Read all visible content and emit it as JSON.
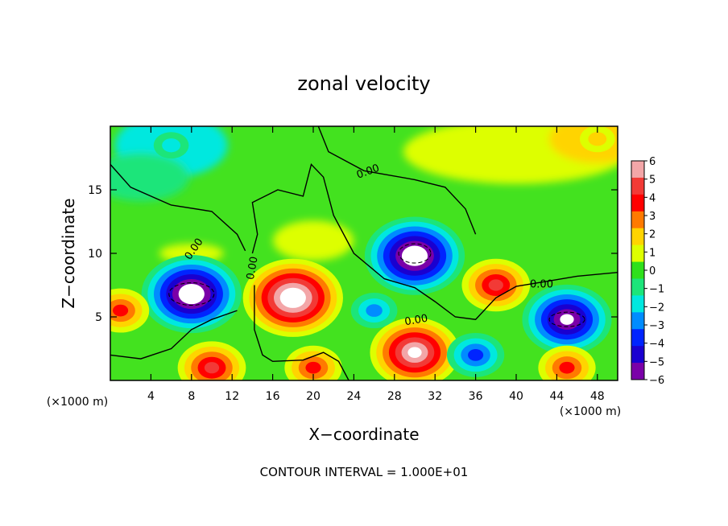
{
  "chart_data": {
    "type": "heatmap",
    "title": "zonal velocity",
    "xlabel": "X−coordinate",
    "ylabel": "Z−coordinate",
    "x_unit_label": "(×1000 m)",
    "z_unit_label": "(×1000 m)",
    "footer": "CONTOUR INTERVAL = 1.000E+01",
    "xlim": [
      0,
      50
    ],
    "ylim": [
      0,
      20
    ],
    "x_ticks": [
      "4",
      "8",
      "12",
      "16",
      "20",
      "24",
      "28",
      "32",
      "36",
      "40",
      "44",
      "48"
    ],
    "y_ticks": [
      "5",
      "10",
      "15"
    ],
    "colorbar": {
      "ticks": [
        "6",
        "5",
        "4",
        "3",
        "2",
        "1",
        "0",
        "−1",
        "−2",
        "−3",
        "−4",
        "−5",
        "−6"
      ],
      "colors": [
        "#f3a6a8",
        "#f23a36",
        "#ff0000",
        "#ff7a00",
        "#ffd400",
        "#ddff00",
        "#2fe01b",
        "#1ce57a",
        "#00e8df",
        "#008cff",
        "#0024ff",
        "#1a00d0",
        "#7a00a8"
      ]
    },
    "contour_labels": [
      "0.00",
      "0.00",
      "0.00",
      "0.00",
      "0.00"
    ],
    "features": [
      {
        "x": 8,
        "z": 6.8,
        "value": -8
      },
      {
        "x": 18,
        "z": 6.5,
        "value": 8
      },
      {
        "x": 30,
        "z": 9.8,
        "value": -8
      },
      {
        "x": 30,
        "z": 2.2,
        "value": 7
      },
      {
        "x": 38,
        "z": 7.5,
        "value": 5
      },
      {
        "x": 45,
        "z": 4.8,
        "value": -7
      },
      {
        "x": 1,
        "z": 5.5,
        "value": 4
      },
      {
        "x": 10,
        "z": 1.0,
        "value": 5
      },
      {
        "x": 45,
        "z": 1.0,
        "value": 4
      },
      {
        "x": 36,
        "z": 2.0,
        "value": -4
      },
      {
        "x": 20,
        "z": 1.0,
        "value": 4
      },
      {
        "x": 26,
        "z": 5.5,
        "value": -3
      },
      {
        "x": 6,
        "z": 18.5,
        "value": -2
      },
      {
        "x": 37,
        "z": 18,
        "value": 1.5
      },
      {
        "x": 48,
        "z": 19,
        "value": 2
      }
    ]
  }
}
